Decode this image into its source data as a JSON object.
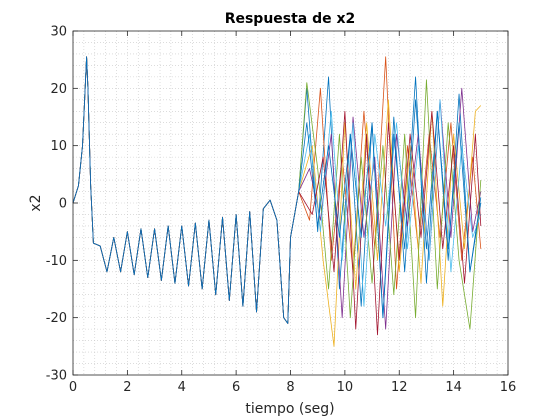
{
  "chart_data": {
    "type": "line",
    "title": "Respuesta de x2",
    "xlabel": "tiempo (seg)",
    "ylabel": "x2",
    "xlim": [
      0,
      16
    ],
    "ylim": [
      -30,
      30
    ],
    "xticks": [
      0,
      2,
      4,
      6,
      8,
      10,
      12,
      14,
      16
    ],
    "yticks": [
      -30,
      -20,
      -10,
      0,
      10,
      20,
      30
    ],
    "grid": "minor-dotted",
    "legend": "none",
    "series_count": 8,
    "colors": [
      "#0072BD",
      "#D95319",
      "#EDB120",
      "#7E2F8E",
      "#77AC30",
      "#4DBEEE",
      "#A2142F",
      "#0072BD"
    ],
    "common_response": {
      "x": [
        0,
        0.2,
        0.35,
        0.5,
        0.55,
        0.65,
        0.75,
        1.0,
        1.25,
        1.5,
        1.75,
        2.0,
        2.25,
        2.5,
        2.75,
        3.0,
        3.25,
        3.5,
        3.75,
        4.0,
        4.25,
        4.5,
        4.75,
        5.0,
        5.25,
        5.5,
        5.75,
        6.0,
        6.25,
        6.5,
        6.75,
        7.0,
        7.25,
        7.5,
        7.75,
        7.9,
        8.0,
        8.3
      ],
      "y": [
        0,
        3,
        10,
        25.5,
        20,
        3,
        -7,
        -7.5,
        -12,
        -6,
        -12,
        -5,
        -12.5,
        -4.5,
        -13,
        -4.5,
        -13.5,
        -4,
        -14,
        -4,
        -14.5,
        -3.5,
        -15,
        -3,
        -16,
        -2.5,
        -17,
        -2,
        -18,
        -1.5,
        -19,
        -1,
        0.5,
        -3,
        -20,
        -21,
        -6,
        2
      ]
    },
    "series": [
      {
        "x": [
          8.3,
          8.6,
          9.0,
          9.4,
          9.8,
          10.2,
          10.6,
          11.0,
          11.4,
          11.8,
          12.2,
          12.6,
          13.0,
          13.4,
          13.8,
          14.2,
          14.6,
          15.0
        ],
        "y": [
          2,
          20,
          -5,
          22,
          -15,
          12,
          -18,
          14,
          -20,
          15,
          -12,
          18,
          -8,
          16,
          -10,
          19,
          -12,
          0
        ]
      },
      {
        "x": [
          8.3,
          8.7,
          9.1,
          9.5,
          9.9,
          10.3,
          10.7,
          11.1,
          11.5,
          11.9,
          12.3,
          12.7,
          13.1,
          13.5,
          13.9,
          14.3,
          14.7,
          15.0
        ],
        "y": [
          2,
          -3,
          20,
          -10,
          8,
          -12,
          16,
          -8,
          25.5,
          -15,
          10,
          -8,
          12,
          -6,
          14,
          -10,
          8,
          -8
        ]
      },
      {
        "x": [
          8.3,
          8.8,
          9.2,
          9.6,
          10.0,
          10.4,
          10.8,
          11.2,
          11.6,
          12.0,
          12.4,
          12.8,
          13.2,
          13.6,
          14.0,
          14.4,
          14.8,
          15.0
        ],
        "y": [
          2,
          10,
          -10,
          -25,
          14,
          -15,
          14,
          -10,
          18,
          -12,
          10,
          -14,
          16,
          -18,
          12,
          -8,
          16,
          17
        ]
      },
      {
        "x": [
          8.3,
          8.7,
          9.1,
          9.5,
          9.9,
          10.3,
          10.7,
          11.1,
          11.5,
          11.9,
          12.3,
          12.7,
          13.1,
          13.5,
          13.9,
          14.3,
          14.7,
          15.0
        ],
        "y": [
          2,
          6,
          -3,
          12,
          -20,
          15,
          -6,
          8,
          -22,
          12,
          -4,
          12,
          -10,
          18,
          -6,
          20,
          -5,
          2
        ]
      },
      {
        "x": [
          8.3,
          8.6,
          9.0,
          9.4,
          9.8,
          10.2,
          10.6,
          11.0,
          11.4,
          11.8,
          12.2,
          12.6,
          13.0,
          13.4,
          13.8,
          14.2,
          14.6,
          15.0
        ],
        "y": [
          2,
          21,
          6,
          -15,
          12,
          -20,
          8,
          -14,
          10,
          -16,
          12,
          -20,
          21.5,
          -15,
          14,
          -10,
          -22,
          4
        ]
      },
      {
        "x": [
          8.3,
          8.7,
          9.1,
          9.5,
          9.9,
          10.3,
          10.7,
          11.1,
          11.5,
          11.9,
          12.3,
          12.7,
          13.1,
          13.5,
          13.9,
          14.3,
          14.7,
          15.0
        ],
        "y": [
          2,
          12,
          -5,
          16,
          -10,
          14,
          -18,
          12,
          -4,
          14,
          -8,
          10,
          -10,
          18,
          -12,
          10,
          -6,
          -2
        ]
      },
      {
        "x": [
          8.3,
          8.8,
          9.2,
          9.6,
          10.0,
          10.4,
          10.8,
          11.2,
          11.6,
          12.0,
          12.4,
          12.8,
          13.2,
          13.6,
          14.0,
          14.4,
          14.8,
          15.0
        ],
        "y": [
          2,
          -2,
          8,
          -12,
          16,
          -22,
          12,
          -23,
          14,
          -10,
          12,
          -6,
          16,
          -8,
          10,
          -14,
          12,
          -4
        ]
      },
      {
        "x": [
          8.3,
          8.6,
          9.0,
          9.4,
          9.8,
          10.2,
          10.6,
          11.0,
          11.4,
          11.8,
          12.2,
          12.6,
          13.0,
          13.4,
          13.8,
          14.2,
          14.6,
          15.0
        ],
        "y": [
          2,
          14,
          -4,
          10,
          -6,
          12,
          -6,
          14,
          -20,
          12,
          -8,
          22,
          -14,
          16,
          -8,
          14,
          -12,
          1
        ]
      }
    ]
  }
}
